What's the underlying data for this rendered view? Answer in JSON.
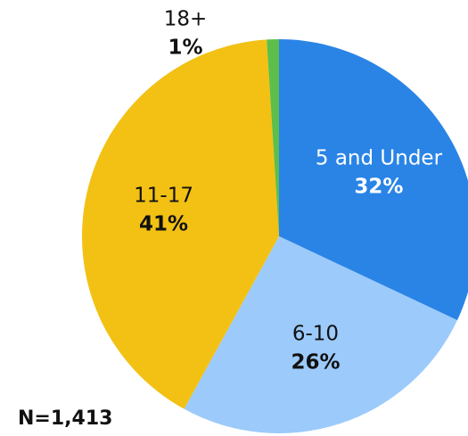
{
  "chart_data": {
    "type": "pie",
    "categories": [
      "5 and Under",
      "6-10",
      "11-17",
      "18+"
    ],
    "values": [
      32,
      26,
      41,
      1
    ],
    "value_labels": [
      "32%",
      "26%",
      "41%",
      "1%"
    ],
    "colors": [
      "#2a84e6",
      "#9ccafb",
      "#f2c114",
      "#5dbf4b"
    ],
    "label_colors": [
      "#ffffff",
      "#111111",
      "#111111",
      "#111111"
    ],
    "annotation": "N=1,413"
  }
}
